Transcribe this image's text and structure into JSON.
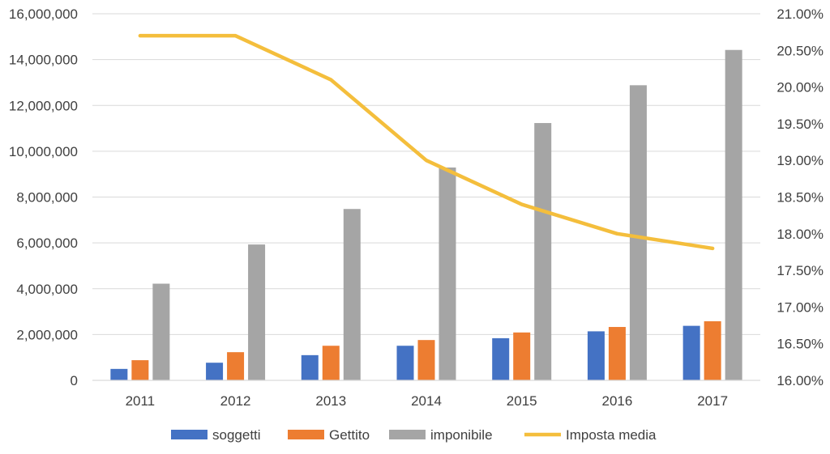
{
  "chart_data": {
    "type": "bar",
    "categories": [
      "2011",
      "2012",
      "2013",
      "2014",
      "2015",
      "2016",
      "2017"
    ],
    "series": [
      {
        "name": "soggetti",
        "type": "bar",
        "axis": "left",
        "color": "#4472C4",
        "values": [
          500000,
          770000,
          1100000,
          1510000,
          1840000,
          2140000,
          2380000
        ]
      },
      {
        "name": "Gettito",
        "type": "bar",
        "axis": "left",
        "color": "#ED7D31",
        "values": [
          880000,
          1230000,
          1510000,
          1760000,
          2090000,
          2330000,
          2580000
        ]
      },
      {
        "name": "imponibile",
        "type": "bar",
        "axis": "left",
        "color": "#A5A5A5",
        "values": [
          4220000,
          5930000,
          7480000,
          9290000,
          11230000,
          12880000,
          14420000
        ]
      },
      {
        "name": "Imposta media",
        "type": "line",
        "axis": "right",
        "color": "#F4BE3C",
        "values": [
          0.207,
          0.207,
          0.201,
          0.19,
          0.184,
          0.18,
          0.178
        ]
      }
    ],
    "y_left": {
      "lim": [
        0,
        16000000
      ],
      "ticks": [
        0,
        2000000,
        4000000,
        6000000,
        8000000,
        10000000,
        12000000,
        14000000,
        16000000
      ],
      "tick_labels": [
        "0",
        "2,000,000",
        "4,000,000",
        "6,000,000",
        "8,000,000",
        "10,000,000",
        "12,000,000",
        "14,000,000",
        "16,000,000"
      ]
    },
    "y_right": {
      "lim": [
        0.16,
        0.21
      ],
      "ticks": [
        0.16,
        0.165,
        0.17,
        0.175,
        0.18,
        0.185,
        0.19,
        0.195,
        0.2,
        0.205,
        0.21
      ],
      "tick_labels": [
        "16.00%",
        "16.50%",
        "17.00%",
        "17.50%",
        "18.00%",
        "18.50%",
        "19.00%",
        "19.50%",
        "20.00%",
        "20.50%",
        "21.00%"
      ]
    },
    "grid": true,
    "legend_position": "bottom",
    "title": "",
    "xlabel": "",
    "ylabel": ""
  }
}
